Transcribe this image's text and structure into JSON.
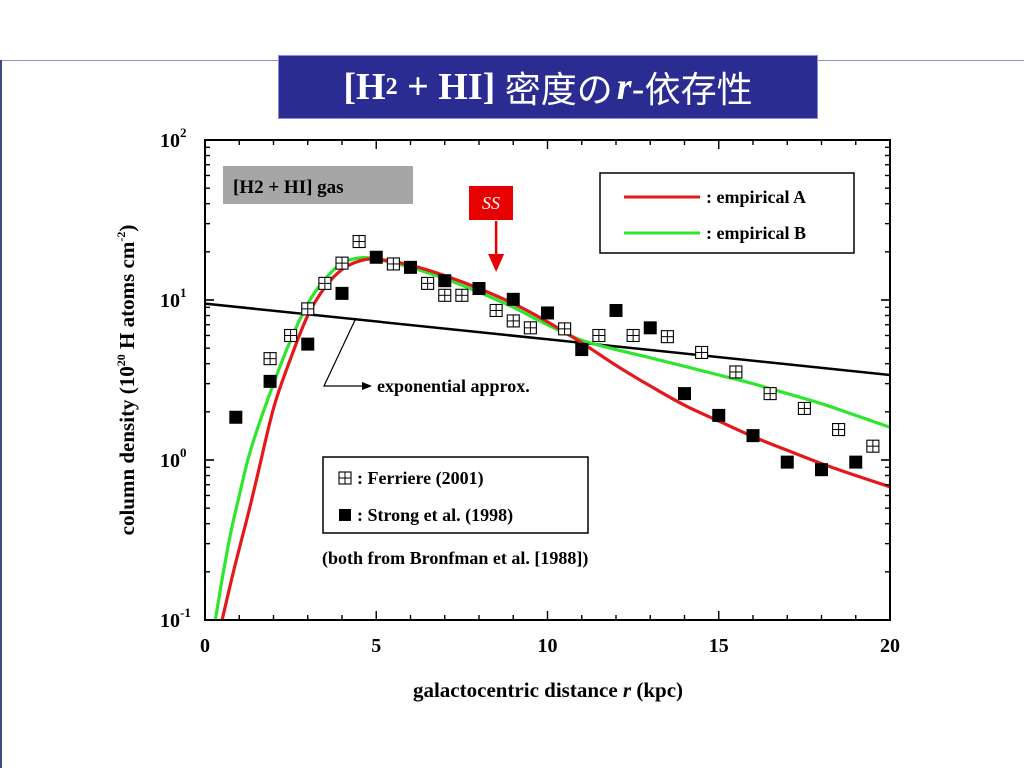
{
  "slide": {
    "title": {
      "bracket_open": "[H",
      "sub": "2",
      "middle": " + HI] ",
      "jp1": "密度の",
      "r": "r",
      "jp2": "-依存性"
    }
  },
  "chart_data": {
    "type": "line",
    "xlabel": "galactocentric distance",
    "xlabel_var": "r",
    "xlabel_unit": "(kpc)",
    "ylabel": "column density",
    "ylabel_unit": "(10^20 H atoms cm^-2)",
    "xlim": [
      0,
      20
    ],
    "ylim": [
      0.1,
      100
    ],
    "yscale": "log",
    "x_ticks": [
      0,
      5,
      10,
      15,
      20
    ],
    "x_tick_labels": [
      "0",
      "5",
      "10",
      "15",
      "20"
    ],
    "y_tick_labels": [
      {
        "value": 0.1,
        "base": "10",
        "exp": "-1"
      },
      {
        "value": 1,
        "base": "10",
        "exp": "0"
      },
      {
        "value": 10,
        "base": "10",
        "exp": "1"
      },
      {
        "value": 100,
        "base": "10",
        "exp": "2"
      }
    ],
    "annotations": {
      "gas_label": "[H2 + HI] gas",
      "ss_label": "SS",
      "ss_x": 8.5,
      "exponential_label": "exponential approx.",
      "source_note": "(both from Bronfman et al. [1988])"
    },
    "legend_lines": [
      {
        "label": ": empirical A",
        "color": "#e3191c"
      },
      {
        "label": ": empirical B",
        "color": "#2ee62e"
      }
    ],
    "legend_points": [
      {
        "label": ": Ferriere (2001)",
        "marker": "open-square-cross"
      },
      {
        "label": ": Strong et al. (1998)",
        "marker": "filled-square"
      }
    ],
    "series": [
      {
        "name": "empirical A",
        "color": "#e3191c",
        "x": [
          0.5,
          0.75,
          1,
          1.25,
          1.5,
          2,
          2.5,
          3,
          3.5,
          4,
          4.5,
          5,
          6,
          7,
          8,
          9,
          10,
          11,
          12,
          13,
          14,
          15,
          16,
          17,
          18,
          19,
          20
        ],
        "y": [
          0.1,
          0.17,
          0.28,
          0.45,
          0.75,
          2.1,
          4.3,
          8.0,
          12.0,
          15.5,
          17.5,
          18.0,
          16.5,
          14.2,
          11.8,
          9.5,
          7.3,
          5.4,
          3.9,
          2.9,
          2.2,
          1.75,
          1.4,
          1.15,
          0.95,
          0.8,
          0.68
        ]
      },
      {
        "name": "empirical B",
        "color": "#2ee62e",
        "x": [
          0.3,
          0.5,
          0.75,
          1,
          1.25,
          1.5,
          2,
          2.5,
          3,
          3.5,
          4,
          4.5,
          5,
          6,
          7,
          8,
          9,
          10,
          11,
          12,
          13,
          14,
          15,
          16,
          17,
          18,
          19,
          20
        ],
        "y": [
          0.1,
          0.18,
          0.35,
          0.6,
          1.0,
          1.5,
          3.0,
          5.6,
          9.5,
          13.5,
          17.0,
          18.3,
          18.0,
          16.0,
          13.6,
          11.2,
          9.0,
          7.0,
          5.6,
          4.9,
          4.35,
          3.85,
          3.4,
          3.0,
          2.6,
          2.25,
          1.9,
          1.6
        ]
      },
      {
        "name": "exponential approx.",
        "color": "#000000",
        "x": [
          0,
          20
        ],
        "y": [
          9.5,
          3.4
        ]
      }
    ],
    "points": [
      {
        "name": "Ferriere (2001)",
        "marker": "open-square-cross",
        "x": [
          1.9,
          2.5,
          3,
          3.5,
          4,
          4.5,
          5.5,
          6.5,
          7,
          7.5,
          8.5,
          9,
          9.5,
          10.5,
          11.5,
          12.5,
          13.5,
          14.5,
          15.5,
          16.5,
          17.5,
          18.5,
          19.5
        ],
        "y": [
          4.3,
          6.0,
          8.8,
          12.7,
          17.0,
          23.2,
          16.8,
          12.7,
          10.7,
          10.7,
          8.6,
          7.4,
          6.7,
          6.6,
          6.0,
          6.0,
          5.9,
          4.7,
          3.55,
          2.6,
          2.1,
          1.55,
          1.22
        ]
      },
      {
        "name": "Strong et al. (1998)",
        "marker": "filled-square",
        "x": [
          0.9,
          1.9,
          3,
          4,
          5,
          6,
          7,
          8,
          9,
          10,
          11,
          12,
          13,
          14,
          15,
          16,
          17,
          18,
          19
        ],
        "y": [
          1.85,
          3.1,
          5.3,
          11.0,
          18.5,
          16.0,
          13.2,
          11.8,
          10.1,
          8.3,
          4.9,
          8.6,
          6.7,
          2.6,
          1.9,
          1.42,
          0.97,
          0.87,
          0.97
        ]
      }
    ]
  }
}
